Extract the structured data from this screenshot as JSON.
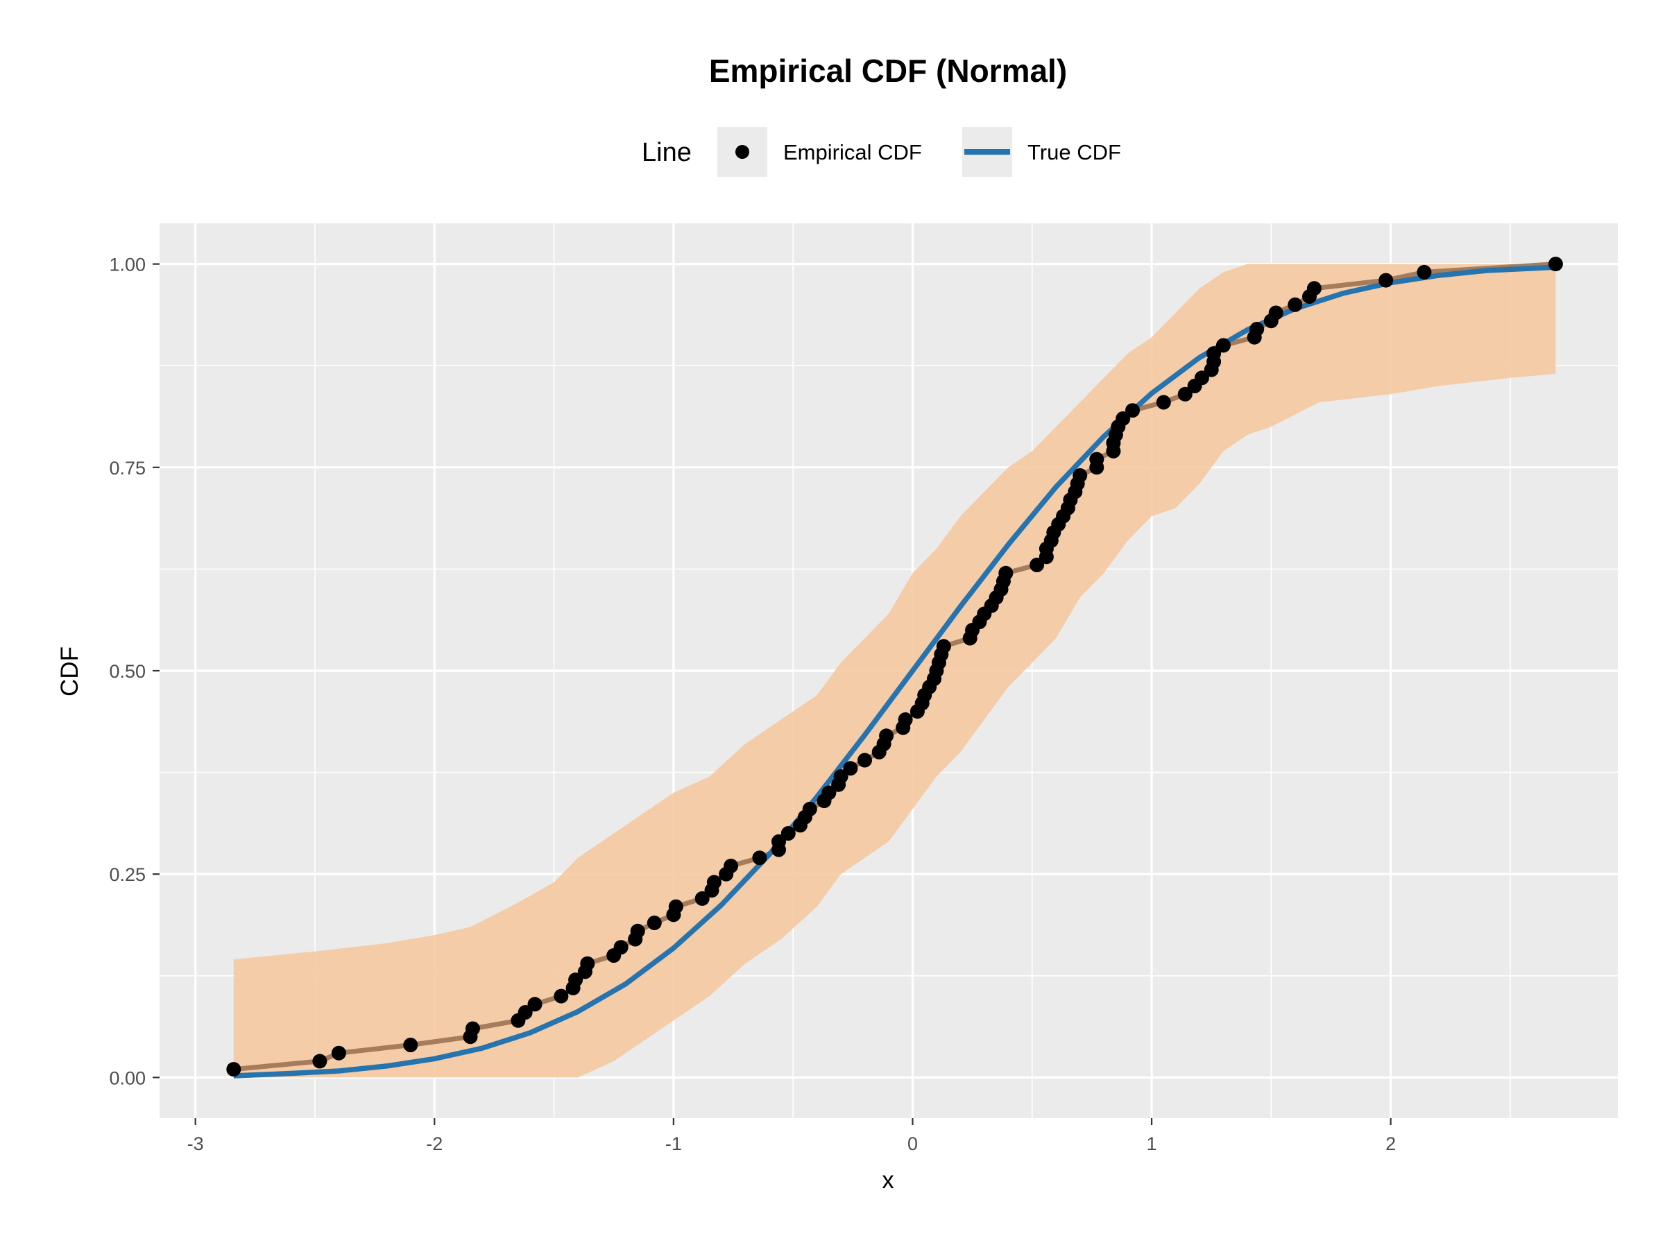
{
  "chart_data": {
    "type": "line",
    "title": "Empirical CDF (Normal)",
    "xlabel": "x",
    "ylabel": "CDF",
    "xlim": [
      -3,
      2.7
    ],
    "ylim": [
      0,
      1
    ],
    "x_ticks": [
      -3,
      -2,
      -1,
      0,
      1,
      2
    ],
    "x_tick_labels": [
      "-3",
      "-2",
      "-1",
      "0",
      "1",
      "2"
    ],
    "y_ticks": [
      0,
      0.25,
      0.5,
      0.75,
      1
    ],
    "y_tick_labels": [
      "0.00",
      "0.25",
      "0.50",
      "0.75",
      "1.00"
    ],
    "grid": true,
    "legend": {
      "title": "Line",
      "placement": "top",
      "entries": [
        {
          "label": "Empirical CDF",
          "marker": "point",
          "color": "#000000"
        },
        {
          "label": "True CDF",
          "marker": "line",
          "color": "#2574b0"
        }
      ]
    },
    "colors": {
      "panel": "#ebebeb",
      "grid": "#ffffff",
      "band": "#f5c79e",
      "empirical_line": "#a67c5a",
      "points": "#000000",
      "true_cdf": "#2574b0"
    },
    "series": [
      {
        "name": "Empirical CDF",
        "x": [
          -2.84,
          -2.48,
          -2.4,
          -2.1,
          -1.85,
          -1.84,
          -1.65,
          -1.62,
          -1.58,
          -1.47,
          -1.42,
          -1.41,
          -1.37,
          -1.36,
          -1.25,
          -1.22,
          -1.16,
          -1.15,
          -1.08,
          -1.0,
          -0.99,
          -0.88,
          -0.84,
          -0.83,
          -0.78,
          -0.76,
          -0.64,
          -0.56,
          -0.56,
          -0.52,
          -0.47,
          -0.45,
          -0.43,
          -0.37,
          -0.35,
          -0.31,
          -0.3,
          -0.26,
          -0.2,
          -0.14,
          -0.12,
          -0.11,
          -0.04,
          -0.03,
          0.02,
          0.04,
          0.05,
          0.07,
          0.09,
          0.1,
          0.11,
          0.12,
          0.13,
          0.24,
          0.25,
          0.28,
          0.3,
          0.33,
          0.35,
          0.37,
          0.38,
          0.39,
          0.52,
          0.56,
          0.56,
          0.58,
          0.59,
          0.61,
          0.63,
          0.65,
          0.66,
          0.68,
          0.69,
          0.7,
          0.77,
          0.77,
          0.84,
          0.84,
          0.85,
          0.86,
          0.88,
          0.92,
          1.05,
          1.14,
          1.18,
          1.21,
          1.25,
          1.26,
          1.26,
          1.3,
          1.43,
          1.44,
          1.5,
          1.52,
          1.6,
          1.66,
          1.68,
          1.98,
          2.14,
          2.69
        ],
        "y": [
          0.01,
          0.02,
          0.03,
          0.04,
          0.05,
          0.06,
          0.07,
          0.08,
          0.09,
          0.1,
          0.11,
          0.12,
          0.13,
          0.14,
          0.15,
          0.16,
          0.17,
          0.18,
          0.19,
          0.2,
          0.21,
          0.22,
          0.23,
          0.24,
          0.25,
          0.26,
          0.27,
          0.28,
          0.29,
          0.3,
          0.31,
          0.32,
          0.33,
          0.34,
          0.35,
          0.36,
          0.37,
          0.38,
          0.39,
          0.4,
          0.41,
          0.42,
          0.43,
          0.44,
          0.45,
          0.46,
          0.47,
          0.48,
          0.49,
          0.5,
          0.51,
          0.52,
          0.53,
          0.54,
          0.55,
          0.56,
          0.57,
          0.58,
          0.59,
          0.6,
          0.61,
          0.62,
          0.63,
          0.64,
          0.65,
          0.66,
          0.67,
          0.68,
          0.69,
          0.7,
          0.71,
          0.72,
          0.73,
          0.74,
          0.75,
          0.76,
          0.77,
          0.78,
          0.79,
          0.8,
          0.81,
          0.82,
          0.83,
          0.84,
          0.85,
          0.86,
          0.87,
          0.88,
          0.89,
          0.9,
          0.91,
          0.92,
          0.93,
          0.94,
          0.95,
          0.96,
          0.97,
          0.98,
          0.99,
          1.0
        ]
      },
      {
        "name": "True CDF",
        "x": [
          -2.84,
          -2.6,
          -2.4,
          -2.2,
          -2.0,
          -1.8,
          -1.6,
          -1.4,
          -1.2,
          -1.0,
          -0.8,
          -0.6,
          -0.4,
          -0.2,
          0.0,
          0.2,
          0.4,
          0.6,
          0.8,
          1.0,
          1.2,
          1.4,
          1.6,
          1.8,
          2.0,
          2.2,
          2.4,
          2.69
        ],
        "y": [
          0.002,
          0.005,
          0.008,
          0.014,
          0.023,
          0.036,
          0.055,
          0.081,
          0.115,
          0.159,
          0.212,
          0.274,
          0.345,
          0.421,
          0.5,
          0.579,
          0.655,
          0.726,
          0.788,
          0.841,
          0.885,
          0.919,
          0.945,
          0.964,
          0.977,
          0.986,
          0.992,
          0.996
        ]
      }
    ],
    "confidence_band": {
      "x": [
        -2.84,
        -2.5,
        -2.2,
        -2.0,
        -1.85,
        -1.65,
        -1.5,
        -1.4,
        -1.25,
        -1.1,
        -1.0,
        -0.85,
        -0.7,
        -0.55,
        -0.4,
        -0.3,
        -0.2,
        -0.1,
        0.0,
        0.1,
        0.2,
        0.3,
        0.4,
        0.5,
        0.6,
        0.7,
        0.8,
        0.9,
        1.0,
        1.1,
        1.2,
        1.3,
        1.4,
        1.5,
        1.7,
        2.0,
        2.2,
        2.5,
        2.69
      ],
      "lower": [
        0.0,
        0.0,
        0.0,
        0.0,
        0.0,
        0.0,
        0.0,
        0.0,
        0.02,
        0.05,
        0.07,
        0.1,
        0.14,
        0.17,
        0.21,
        0.25,
        0.27,
        0.29,
        0.33,
        0.37,
        0.4,
        0.44,
        0.48,
        0.51,
        0.54,
        0.59,
        0.62,
        0.66,
        0.69,
        0.7,
        0.73,
        0.77,
        0.79,
        0.8,
        0.83,
        0.84,
        0.85,
        0.86,
        0.865
      ],
      "upper": [
        0.145,
        0.155,
        0.165,
        0.175,
        0.185,
        0.215,
        0.24,
        0.27,
        0.3,
        0.33,
        0.35,
        0.37,
        0.41,
        0.44,
        0.47,
        0.51,
        0.54,
        0.57,
        0.62,
        0.65,
        0.69,
        0.72,
        0.75,
        0.77,
        0.8,
        0.83,
        0.86,
        0.89,
        0.91,
        0.94,
        0.97,
        0.99,
        1.0,
        1.0,
        1.0,
        1.0,
        1.0,
        1.0,
        1.0
      ]
    }
  }
}
